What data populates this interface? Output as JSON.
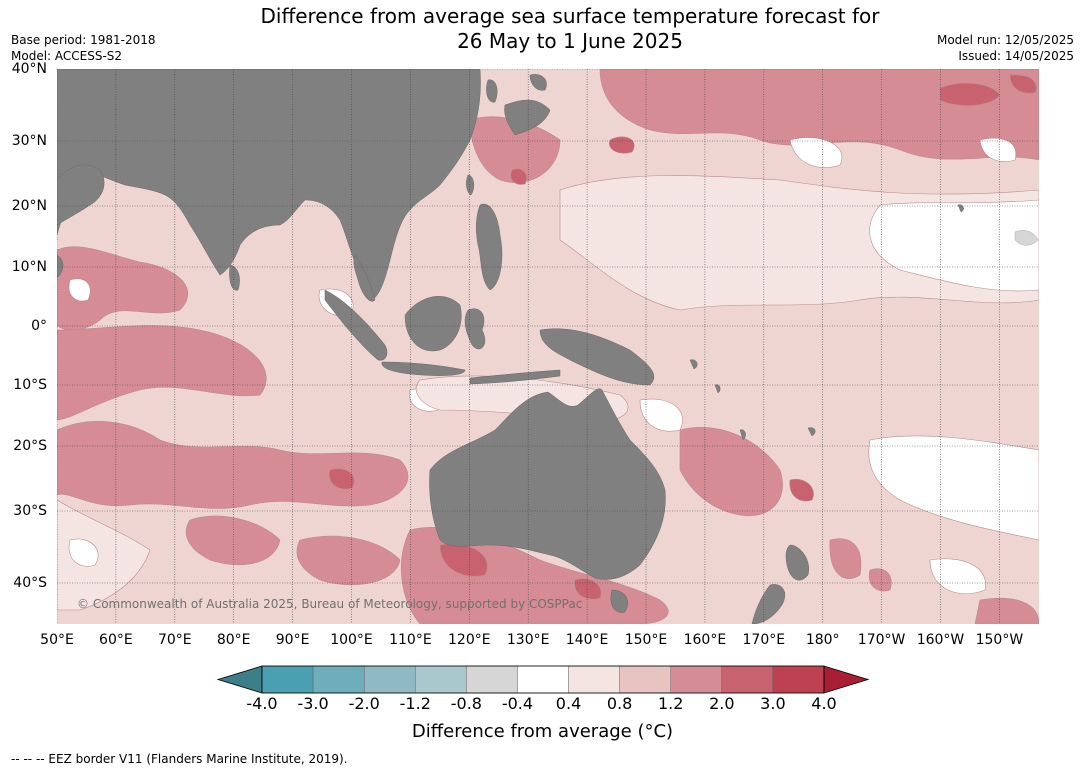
{
  "header": {
    "title_line1": "Difference from average sea surface temperature forecast for",
    "title_line2": "26 May to 1 June 2025",
    "base_period": "Base period: 1981-2018",
    "model": "Model: ACCESS-S2",
    "model_run": "Model run: 12/05/2025",
    "issued": "Issued: 14/05/2025"
  },
  "map": {
    "latitude_labels": [
      "40°N",
      "30°N",
      "20°N",
      "10°N",
      "0°",
      "10°S",
      "20°S",
      "30°S",
      "40°S"
    ],
    "longitude_labels": [
      "50°E",
      "60°E",
      "70°E",
      "80°E",
      "90°E",
      "100°E",
      "110°E",
      "120°E",
      "130°E",
      "140°E",
      "150°E",
      "160°E",
      "170°E",
      "180°",
      "170°W",
      "160°W",
      "150°W"
    ],
    "copyright": "© Commonwealth of Australia 2025, Bureau of Meteorology, supported by COSPPac",
    "land_color": "#808080"
  },
  "colorbar": {
    "title": "Difference from average (°C)",
    "ticks": [
      "-4.0",
      "-3.0",
      "-2.0",
      "-1.2",
      "-0.8",
      "-0.4",
      "0.4",
      "0.8",
      "1.2",
      "2.0",
      "3.0",
      "4.0"
    ],
    "colors": [
      "#3d7f89",
      "#4aa0b1",
      "#6eaebb",
      "#8fbac4",
      "#a9c8cc",
      "#d6d6d6",
      "#ffffff",
      "#f4e5e3",
      "#e7c4c0",
      "#d68c94",
      "#c8626f",
      "#bd4150",
      "#a91e35"
    ]
  },
  "footer": {
    "eez": "--  --  -- EEZ border V11 (Flanders Marine Institute, 2019)."
  }
}
